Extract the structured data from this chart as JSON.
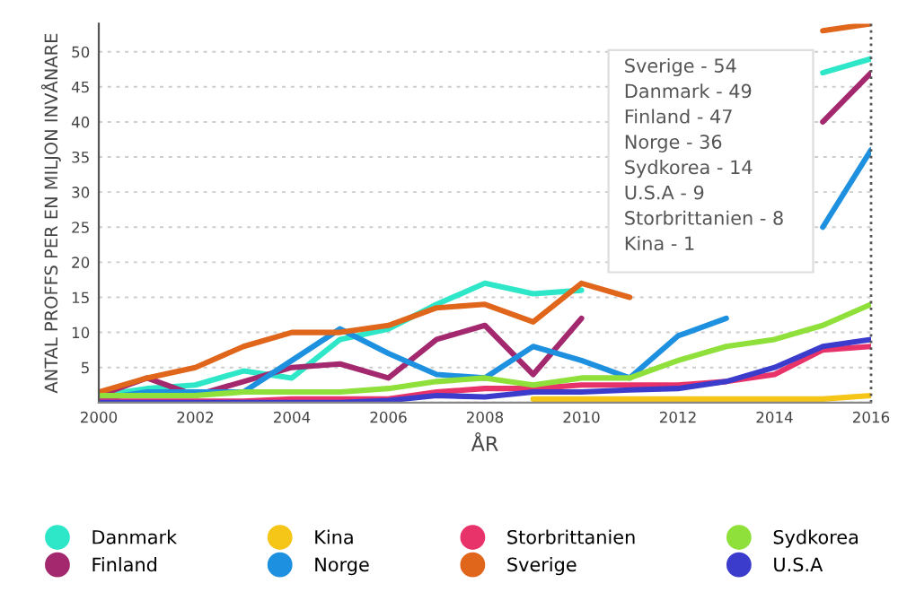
{
  "chart_data": {
    "type": "line",
    "xlabel": "ÅR",
    "ylabel": "ANTAL PROFFS PER EN MILJON INVÅNARE",
    "x": [
      2000,
      2001,
      2002,
      2003,
      2004,
      2005,
      2006,
      2007,
      2008,
      2009,
      2010,
      2011,
      2012,
      2013,
      2014,
      2015,
      2016
    ],
    "series": [
      {
        "name": "Danmark",
        "color": "#2ee6c8",
        "values": [
          1,
          2,
          2.5,
          4.5,
          3.5,
          9,
          10.5,
          14,
          17,
          15.5,
          16,
          null,
          null,
          null,
          null,
          47,
          49
        ]
      },
      {
        "name": "Finland",
        "color": "#a3286e",
        "values": [
          1,
          3.5,
          1,
          3,
          5,
          5.5,
          3.5,
          9,
          11,
          4,
          12,
          null,
          null,
          null,
          null,
          40,
          47
        ]
      },
      {
        "name": "Kina",
        "color": "#f5c518",
        "values": [
          null,
          null,
          null,
          null,
          null,
          null,
          null,
          null,
          null,
          0.5,
          0.5,
          0.5,
          0.5,
          0.5,
          0.5,
          0.5,
          1
        ]
      },
      {
        "name": "Norge",
        "color": "#1e90e0",
        "values": [
          0.5,
          1.5,
          1.5,
          1.5,
          6,
          10.5,
          7,
          4,
          3.5,
          8,
          6,
          3.5,
          9.5,
          12,
          null,
          25,
          36
        ]
      },
      {
        "name": "Storbrittanien",
        "color": "#e8336a",
        "values": [
          0.2,
          0.2,
          0.2,
          0.2,
          0.5,
          0.5,
          0.5,
          1.5,
          2,
          2,
          2.5,
          2.5,
          2.5,
          3,
          4,
          7.5,
          8
        ]
      },
      {
        "name": "Sverige",
        "color": "#e0661c",
        "values": [
          1.5,
          3.5,
          5,
          8,
          10,
          10,
          11,
          13.5,
          14,
          11.5,
          17,
          15,
          null,
          null,
          null,
          53,
          54
        ]
      },
      {
        "name": "Sydkorea",
        "color": "#8fe03a",
        "values": [
          1,
          1,
          1,
          1.5,
          1.5,
          1.5,
          2,
          3,
          3.5,
          2.5,
          3.5,
          3.5,
          6,
          8,
          9,
          11,
          14
        ]
      },
      {
        "name": "U.S.A",
        "color": "#3c3ccc",
        "values": [
          0,
          0,
          0,
          0,
          0,
          0,
          0.3,
          1,
          0.8,
          1.5,
          1.5,
          1.8,
          2,
          3,
          5,
          8,
          9
        ]
      }
    ],
    "xlim": [
      2000,
      2016
    ],
    "xticks": [
      2000,
      2002,
      2004,
      2006,
      2008,
      2010,
      2012,
      2014,
      2016
    ],
    "ylim": [
      0,
      54
    ],
    "yticks": [
      {
        "value": 0,
        "label": null
      },
      5,
      10,
      15,
      20,
      25,
      30,
      35,
      40,
      45,
      50
    ],
    "grid": "y",
    "legend": "bottom",
    "marker": "none",
    "line_style": "solid",
    "ref_lines": [
      {
        "axis": "x",
        "value": 2016,
        "color": "#555555",
        "line_style": "dotted"
      }
    ],
    "annotations": [
      "Sverige - 54",
      "Danmark - 49",
      "Finland - 47",
      "Norge - 36",
      "Sydkorea - 14",
      "U.S.A - 9",
      "Storbrittanien - 8",
      "Kina - 1"
    ]
  }
}
